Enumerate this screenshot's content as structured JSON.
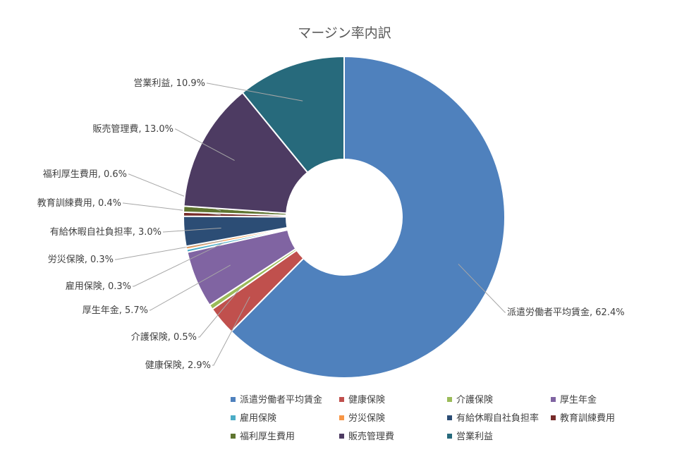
{
  "chart_data": {
    "type": "pie",
    "title": "マージン率内訳",
    "slices": [
      {
        "name": "派遣労働者平均賃金",
        "value": 62.4,
        "label": "派遣労働者平均賃金, 62.4%",
        "color": "#4f81bd"
      },
      {
        "name": "健康保険",
        "value": 2.9,
        "label": "健康保険, 2.9%",
        "color": "#c0504d"
      },
      {
        "name": "介護保険",
        "value": 0.5,
        "label": "介護保険, 0.5%",
        "color": "#9bbb59"
      },
      {
        "name": "厚生年金",
        "value": 5.7,
        "label": "厚生年金, 5.7%",
        "color": "#8064a2"
      },
      {
        "name": "雇用保険",
        "value": 0.3,
        "label": "雇用保険, 0.3%",
        "color": "#4bacc6"
      },
      {
        "name": "労災保険",
        "value": 0.3,
        "label": "労災保険, 0.3%",
        "color": "#f79646"
      },
      {
        "name": "有給休暇自社負担率",
        "value": 3.0,
        "label": "有給休暇自社負担率, 3.0%",
        "color": "#2c4d75"
      },
      {
        "name": "教育訓練費用",
        "value": 0.4,
        "label": "教育訓練費用, 0.4%",
        "color": "#772c2a"
      },
      {
        "name": "福利厚生費用",
        "value": 0.6,
        "label": "福利厚生費用, 0.6%",
        "color": "#5f7530"
      },
      {
        "name": "販売管理費",
        "value": 13.0,
        "label": "販売管理費, 13.0%",
        "color": "#4d3b62"
      },
      {
        "name": "営業利益",
        "value": 10.9,
        "label": "営業利益, 10.9%",
        "color": "#276a7c"
      }
    ],
    "legend_position": "bottom"
  }
}
